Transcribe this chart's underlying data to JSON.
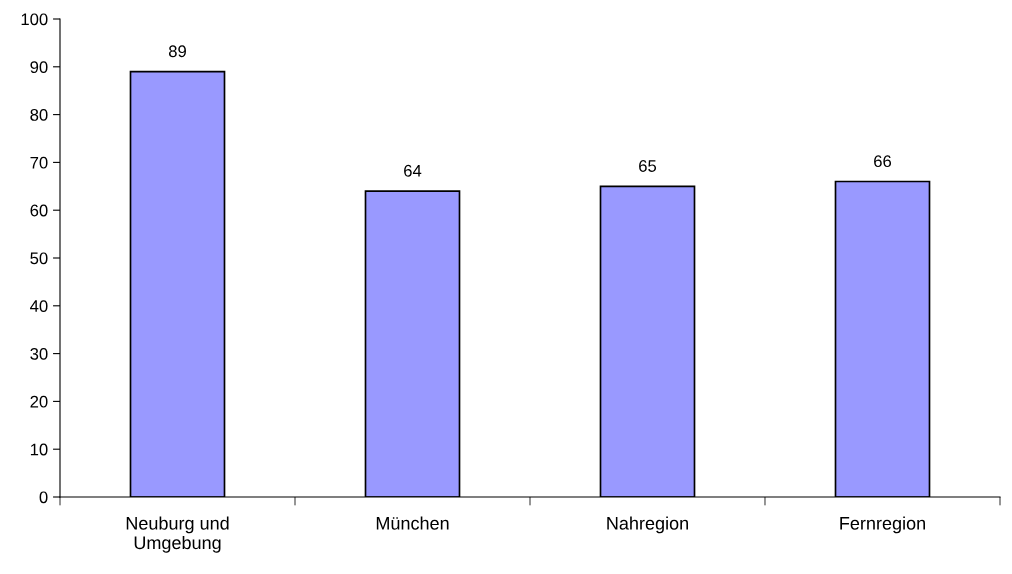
{
  "chart_data": {
    "type": "bar",
    "categories": [
      "Neuburg und\nUmgebung",
      "München",
      "Nahregion",
      "Fernregion"
    ],
    "values": [
      89,
      64,
      65,
      66
    ],
    "color": "#9999ff",
    "ylim": [
      0,
      100
    ],
    "yticks": [
      0,
      10,
      20,
      30,
      40,
      50,
      60,
      70,
      80,
      90,
      100
    ],
    "data_labels": true,
    "grid": false
  }
}
